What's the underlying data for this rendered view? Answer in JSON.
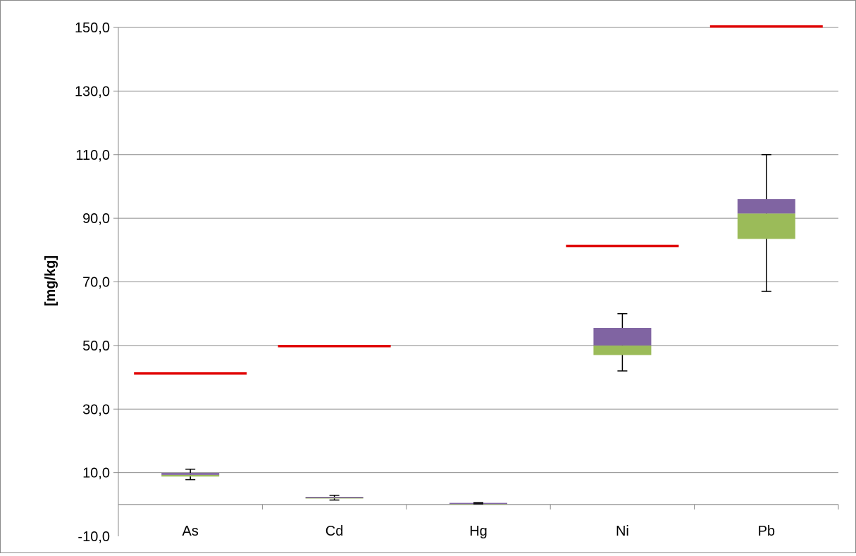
{
  "chart_data": {
    "type": "boxplot",
    "categories": [
      "As",
      "Cd",
      "Hg",
      "Ni",
      "Pb"
    ],
    "ylabel": "[mg/kg]",
    "ylim": [
      -10,
      150
    ],
    "grid": true,
    "y_ticks": [
      {
        "value": 150,
        "label": "150,0"
      },
      {
        "value": 130,
        "label": "130,0"
      },
      {
        "value": 110,
        "label": "110,0"
      },
      {
        "value": 90,
        "label": "90,0"
      },
      {
        "value": 70,
        "label": "70,0"
      },
      {
        "value": 50,
        "label": "50,0"
      },
      {
        "value": 30,
        "label": "30,0"
      },
      {
        "value": 10,
        "label": "10,0"
      },
      {
        "value": -10,
        "label": "-10,0"
      }
    ],
    "category_axis_value": 0,
    "boxes": [
      {
        "category": "As",
        "min": 7.8,
        "q1": 8.8,
        "median": 9.3,
        "q3": 9.9,
        "max": 11.1
      },
      {
        "category": "Cd",
        "min": 1.4,
        "q1": 2.0,
        "median": 2.2,
        "q3": 2.4,
        "max": 2.9
      },
      {
        "category": "Hg",
        "min": 0.2,
        "q1": 0.3,
        "median": 0.4,
        "q3": 0.5,
        "max": 0.6
      },
      {
        "category": "Ni",
        "min": 42.0,
        "q1": 47.0,
        "median": 50.0,
        "q3": 55.5,
        "max": 60.0
      },
      {
        "category": "Pb",
        "min": 67.0,
        "q1": 83.5,
        "median": 91.5,
        "q3": 96.0,
        "max": 110.0
      }
    ],
    "limits": [
      {
        "category": "As",
        "value": 41.2
      },
      {
        "category": "Cd",
        "value": 49.8
      },
      {
        "category": "Hg",
        "value": null
      },
      {
        "category": "Ni",
        "value": 81.3
      },
      {
        "category": "Pb",
        "value": 150.3
      }
    ],
    "colors": {
      "lower_box": "#9bbb59",
      "upper_box": "#8064a2",
      "limit_line": "#e00000",
      "whisker": "#000000",
      "grid": "#8a8a8a",
      "axis": "#8a8a8a"
    }
  }
}
